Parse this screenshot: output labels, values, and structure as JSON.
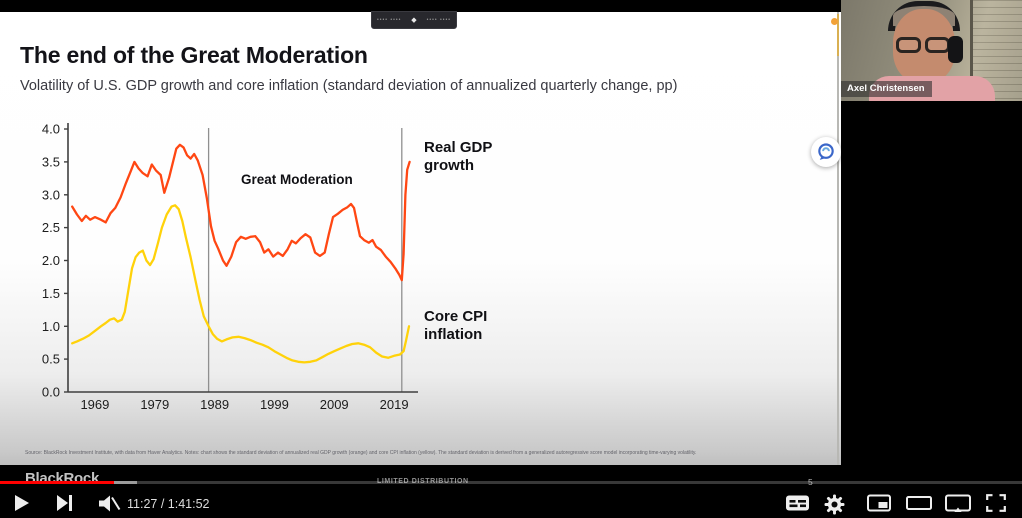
{
  "slide": {
    "title": "The end of the Great Moderation",
    "subtitle": "Volatility of U.S. GDP growth and core inflation (standard deviation of annualized quarterly change, pp)",
    "source_note": "Source: BlackRock Investment Institute, with data from Haver Analytics. Notes: chart shows the standard deviation of annualized real GDP growth (orange) and core CPI inflation (yellow). The standard deviation is derived from a generalized autoregressive score model incorporating time-varying volatility.",
    "footer": {
      "logo_text": "BlackRock",
      "classification": "LIMITED DISTRIBUTION",
      "page_number": "5"
    }
  },
  "webcam": {
    "name_label": "Axel Christensen"
  },
  "meeting_toolbar": {
    "left_dots": "•••• ••••",
    "diamond_icon": "◆",
    "right_dots": "•••• ••••"
  },
  "annotation_button": {
    "icon": "chat-swirl-icon",
    "color": "#3a66c9"
  },
  "player": {
    "time_display": "11:27 / 1:41:52",
    "progress_percent": 11.2,
    "progress_color": "#ff0000",
    "controls_left": [
      "play",
      "next",
      "mute"
    ],
    "controls_right": [
      "subtitles",
      "settings",
      "miniplayer",
      "theater-mode",
      "play-on-tv",
      "fullscreen"
    ]
  },
  "chart_data": {
    "type": "line",
    "title": "The end of the Great Moderation",
    "subtitle": "Volatility of U.S. GDP growth and core inflation (standard deviation of annualized quarterly change, pp)",
    "xlabel": "",
    "ylabel": "",
    "x_range": [
      1964.5,
      2022.5
    ],
    "y_range": [
      0,
      4
    ],
    "x_ticks": [
      1969,
      1979,
      1989,
      1999,
      2009,
      2019
    ],
    "y_ticks": [
      4.0,
      3.5,
      3.0,
      2.5,
      2.0,
      1.5,
      1.0,
      0.5,
      0.0
    ],
    "grid": false,
    "marker_lines_x": [
      1988,
      2020.3
    ],
    "annotations": [
      {
        "text": "Great Moderation"
      },
      {
        "text": "Real GDP\ngrowth"
      },
      {
        "text": "Core CPI\ninflation"
      }
    ],
    "series": [
      {
        "name": "Real GDP growth",
        "color": "#ff4713",
        "points": [
          [
            1965.2,
            2.82
          ],
          [
            1966,
            2.7
          ],
          [
            1966.8,
            2.6
          ],
          [
            1967.5,
            2.68
          ],
          [
            1968.2,
            2.62
          ],
          [
            1969,
            2.66
          ],
          [
            1970,
            2.62
          ],
          [
            1970.8,
            2.58
          ],
          [
            1971.6,
            2.72
          ],
          [
            1972.4,
            2.8
          ],
          [
            1973.3,
            2.96
          ],
          [
            1974.2,
            3.18
          ],
          [
            1975,
            3.36
          ],
          [
            1975.6,
            3.5
          ],
          [
            1976.3,
            3.4
          ],
          [
            1977,
            3.33
          ],
          [
            1977.8,
            3.28
          ],
          [
            1978.5,
            3.46
          ],
          [
            1979.2,
            3.37
          ],
          [
            1980,
            3.3
          ],
          [
            1980.6,
            3.03
          ],
          [
            1981.4,
            3.26
          ],
          [
            1982,
            3.48
          ],
          [
            1982.6,
            3.7
          ],
          [
            1983.2,
            3.76
          ],
          [
            1983.8,
            3.72
          ],
          [
            1984.4,
            3.6
          ],
          [
            1985,
            3.55
          ],
          [
            1985.6,
            3.62
          ],
          [
            1986.2,
            3.52
          ],
          [
            1987,
            3.3
          ],
          [
            1987.7,
            2.95
          ],
          [
            1988.4,
            2.52
          ],
          [
            1989,
            2.3
          ],
          [
            1989.6,
            2.18
          ],
          [
            1990.4,
            2.0
          ],
          [
            1991,
            1.92
          ],
          [
            1991.8,
            2.06
          ],
          [
            1992.6,
            2.28
          ],
          [
            1993.4,
            2.36
          ],
          [
            1994.2,
            2.33
          ],
          [
            1995,
            2.36
          ],
          [
            1995.8,
            2.37
          ],
          [
            1996.6,
            2.28
          ],
          [
            1997.3,
            2.12
          ],
          [
            1998,
            2.17
          ],
          [
            1998.8,
            2.06
          ],
          [
            1999.6,
            2.12
          ],
          [
            2000.4,
            2.07
          ],
          [
            2001.2,
            2.17
          ],
          [
            2001.9,
            2.3
          ],
          [
            2002.6,
            2.26
          ],
          [
            2003.4,
            2.34
          ],
          [
            2004.2,
            2.4
          ],
          [
            2005,
            2.35
          ],
          [
            2005.8,
            2.12
          ],
          [
            2006.6,
            2.07
          ],
          [
            2007.4,
            2.12
          ],
          [
            2008.1,
            2.4
          ],
          [
            2008.8,
            2.66
          ],
          [
            2009.6,
            2.71
          ],
          [
            2010.4,
            2.77
          ],
          [
            2011.2,
            2.81
          ],
          [
            2011.8,
            2.86
          ],
          [
            2012.3,
            2.8
          ],
          [
            2012.8,
            2.58
          ],
          [
            2013.3,
            2.37
          ],
          [
            2014,
            2.31
          ],
          [
            2014.8,
            2.27
          ],
          [
            2015.4,
            2.31
          ],
          [
            2016,
            2.21
          ],
          [
            2016.8,
            2.16
          ],
          [
            2017.6,
            2.06
          ],
          [
            2018.4,
            1.98
          ],
          [
            2019.2,
            1.88
          ],
          [
            2019.9,
            1.78
          ],
          [
            2020.3,
            1.7
          ],
          [
            2020.6,
            2.1
          ],
          [
            2020.9,
            3.0
          ],
          [
            2021.2,
            3.38
          ],
          [
            2021.6,
            3.5
          ]
        ]
      },
      {
        "name": "Core CPI inflation",
        "color": "#ffd20a",
        "points": [
          [
            1965.2,
            0.74
          ],
          [
            1966,
            0.77
          ],
          [
            1967,
            0.81
          ],
          [
            1968,
            0.86
          ],
          [
            1969,
            0.93
          ],
          [
            1970,
            1.0
          ],
          [
            1970.8,
            1.05
          ],
          [
            1971.5,
            1.1
          ],
          [
            1972.2,
            1.12
          ],
          [
            1972.8,
            1.07
          ],
          [
            1973.5,
            1.1
          ],
          [
            1974,
            1.22
          ],
          [
            1974.6,
            1.55
          ],
          [
            1975.2,
            1.88
          ],
          [
            1975.8,
            2.05
          ],
          [
            1976.4,
            2.12
          ],
          [
            1977,
            2.15
          ],
          [
            1977.6,
            2.0
          ],
          [
            1978.2,
            1.93
          ],
          [
            1978.8,
            2.02
          ],
          [
            1979.5,
            2.25
          ],
          [
            1980.2,
            2.5
          ],
          [
            1981,
            2.7
          ],
          [
            1981.8,
            2.82
          ],
          [
            1982.4,
            2.84
          ],
          [
            1983,
            2.78
          ],
          [
            1983.6,
            2.6
          ],
          [
            1984.2,
            2.35
          ],
          [
            1985,
            2.05
          ],
          [
            1985.8,
            1.7
          ],
          [
            1986.5,
            1.4
          ],
          [
            1987.2,
            1.15
          ],
          [
            1988,
            1.0
          ],
          [
            1988.7,
            0.88
          ],
          [
            1989.4,
            0.81
          ],
          [
            1990.2,
            0.77
          ],
          [
            1991,
            0.8
          ],
          [
            1992,
            0.83
          ],
          [
            1993,
            0.84
          ],
          [
            1994,
            0.82
          ],
          [
            1995,
            0.79
          ],
          [
            1996,
            0.75
          ],
          [
            1997,
            0.72
          ],
          [
            1998,
            0.68
          ],
          [
            1999,
            0.62
          ],
          [
            2000,
            0.57
          ],
          [
            2001,
            0.52
          ],
          [
            2002,
            0.48
          ],
          [
            2003,
            0.46
          ],
          [
            2004,
            0.45
          ],
          [
            2005,
            0.46
          ],
          [
            2006,
            0.48
          ],
          [
            2007,
            0.53
          ],
          [
            2008,
            0.58
          ],
          [
            2009,
            0.62
          ],
          [
            2010,
            0.66
          ],
          [
            2011,
            0.7
          ],
          [
            2012,
            0.73
          ],
          [
            2013,
            0.74
          ],
          [
            2014,
            0.72
          ],
          [
            2015,
            0.68
          ],
          [
            2016,
            0.6
          ],
          [
            2017,
            0.54
          ],
          [
            2018,
            0.52
          ],
          [
            2019,
            0.55
          ],
          [
            2020,
            0.57
          ],
          [
            2020.6,
            0.62
          ],
          [
            2021,
            0.78
          ],
          [
            2021.5,
            1.0
          ]
        ]
      }
    ]
  }
}
